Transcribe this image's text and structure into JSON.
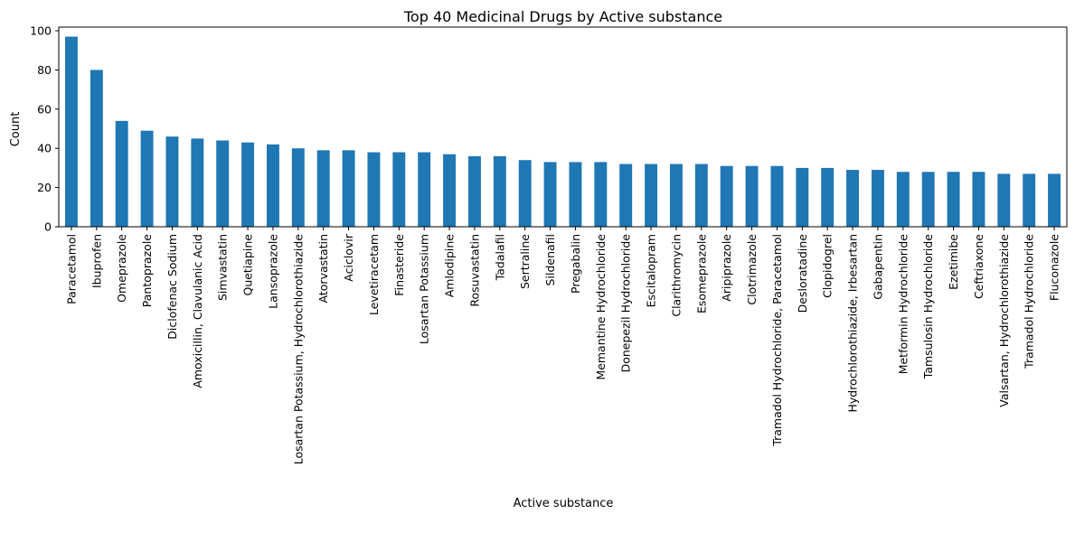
{
  "chart_data": {
    "type": "bar",
    "title": "Top 40 Medicinal Drugs by Active substance",
    "xlabel": "Active substance",
    "ylabel": "Count",
    "ylim": [
      0,
      101.85
    ],
    "yticks": [
      0,
      20,
      40,
      60,
      80,
      100
    ],
    "grid": false,
    "color": "#1f77b4",
    "categories": [
      "Paracetamol",
      "Ibuprofen",
      "Omeprazole",
      "Pantoprazole",
      "Diclofenac Sodium",
      "Amoxicillin, Clavulanic Acid",
      "Simvastatin",
      "Quetiapine",
      "Lansoprazole",
      "Losartan Potassium, Hydrochlorothiazide",
      "Atorvastatin",
      "Aciclovir",
      "Levetiracetam",
      "Finasteride",
      "Losartan Potassium",
      "Amlodipine",
      "Rosuvastatin",
      "Tadalafil",
      "Sertraline",
      "Sildenafil",
      "Pregabalin",
      "Memantine Hydrochloride",
      "Donepezil Hydrochloride",
      "Escitalopram",
      "Clarithromycin",
      "Esomeprazole",
      "Aripiprazole",
      "Clotrimazole",
      "Tramadol Hydrochloride, Paracetamol",
      "Desloratadine",
      "Clopidogrel",
      "Hydrochlorothiazide, Irbesartan",
      "Gabapentin",
      "Metformin Hydrochloride",
      "Tamsulosin Hydrochloride",
      "Ezetimibe",
      "Ceftriaxone",
      "Valsartan, Hydrochlorothiazide",
      "Tramadol Hydrochloride",
      "Fluconazole"
    ],
    "values": [
      97,
      80,
      54,
      49,
      46,
      45,
      44,
      43,
      42,
      40,
      39,
      39,
      38,
      38,
      38,
      37,
      36,
      36,
      34,
      33,
      33,
      33,
      32,
      32,
      32,
      32,
      31,
      31,
      31,
      30,
      30,
      29,
      29,
      28,
      28,
      28,
      28,
      27,
      27,
      27
    ]
  }
}
